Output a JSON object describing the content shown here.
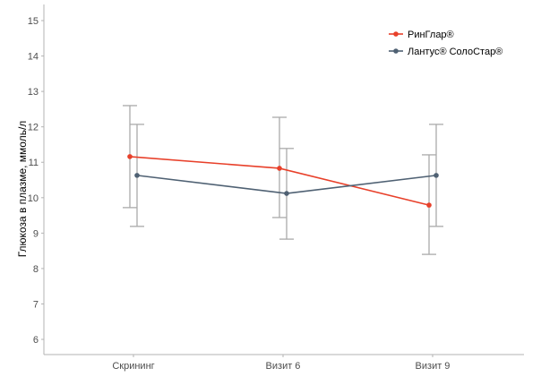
{
  "chart_data": {
    "type": "line",
    "title": "",
    "xlabel": "",
    "ylabel": "Глюкоза в плазме, ммоль/л",
    "ylim": [
      5.6,
      15.45
    ],
    "yticks": [
      6,
      7,
      8,
      9,
      10,
      11,
      12,
      13,
      14,
      15
    ],
    "categories": [
      "Скрининг",
      "Визит 6",
      "Визит 9"
    ],
    "grid": false,
    "legend_position": "top-right",
    "error_bar_color": "#aaaaaa",
    "series": [
      {
        "name": "РинГлар®",
        "color": "#e8402a",
        "values": [
          11.16,
          10.83,
          9.79
        ],
        "upper": [
          12.6,
          12.27,
          11.21
        ],
        "lower": [
          9.72,
          9.44,
          8.4
        ]
      },
      {
        "name": "Лантус® СолоСтар®",
        "color": "#4f6173",
        "values": [
          10.63,
          10.12,
          10.63
        ],
        "upper": [
          12.07,
          11.39,
          12.07
        ],
        "lower": [
          9.19,
          8.83,
          9.19
        ]
      }
    ]
  }
}
